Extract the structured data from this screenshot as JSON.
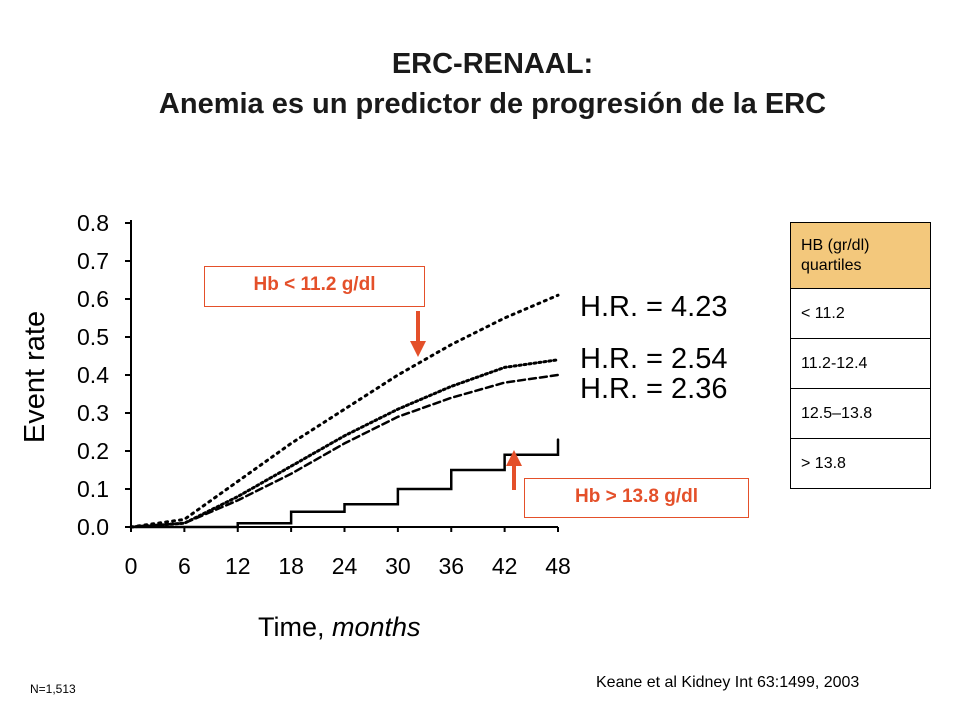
{
  "title": {
    "line1": "ERC-RENAAL:",
    "line2": "Anemia es un predictor de progresión de la ERC"
  },
  "callouts": {
    "low": "Hb < 11.2 g/dl",
    "high": "Hb > 13.8 g/dl"
  },
  "hr_labels": [
    "H.R. = 4.23",
    "H.R. = 2.54",
    "H.R. = 2.36"
  ],
  "quartile_table": {
    "header": "HB (gr/dl) quartiles",
    "rows": [
      "< 11.2",
      "11.2-12.4",
      "12.5–13.8",
      "> 13.8"
    ]
  },
  "citation": "Keane et al Kidney Int 63:1499, 2003",
  "n_note": "N=1,513",
  "colors": {
    "accent": "#e4502a",
    "table_header": "#f3c87c",
    "curves": "#000000"
  },
  "chart_data": {
    "type": "line",
    "xlabel": "Time,",
    "xlabel_unit": "months",
    "ylabel": "Event rate",
    "xlim": [
      0,
      48
    ],
    "ylim": [
      0,
      0.8
    ],
    "x_ticks": [
      "0",
      "6",
      "12",
      "18",
      "24",
      "30",
      "36",
      "42",
      "48"
    ],
    "y_ticks": [
      "0.0",
      "0.1",
      "0.2",
      "0.3",
      "0.4",
      "0.5",
      "0.6",
      "0.7",
      "0.8"
    ],
    "grid": false,
    "x": [
      0,
      6,
      12,
      18,
      24,
      30,
      36,
      42,
      48
    ],
    "series": [
      {
        "style": "dotted",
        "values": [
          0.0,
          0.02,
          0.12,
          0.22,
          0.31,
          0.4,
          0.48,
          0.55,
          0.61
        ]
      },
      {
        "style": "dotted-dense",
        "values": [
          0.0,
          0.01,
          0.08,
          0.16,
          0.24,
          0.31,
          0.37,
          0.42,
          0.44
        ]
      },
      {
        "style": "dashed",
        "values": [
          0.0,
          0.01,
          0.07,
          0.14,
          0.22,
          0.29,
          0.34,
          0.38,
          0.4
        ]
      },
      {
        "style": "solid",
        "values": [
          0.0,
          0.0,
          0.01,
          0.04,
          0.06,
          0.1,
          0.15,
          0.19,
          0.23
        ]
      }
    ]
  }
}
